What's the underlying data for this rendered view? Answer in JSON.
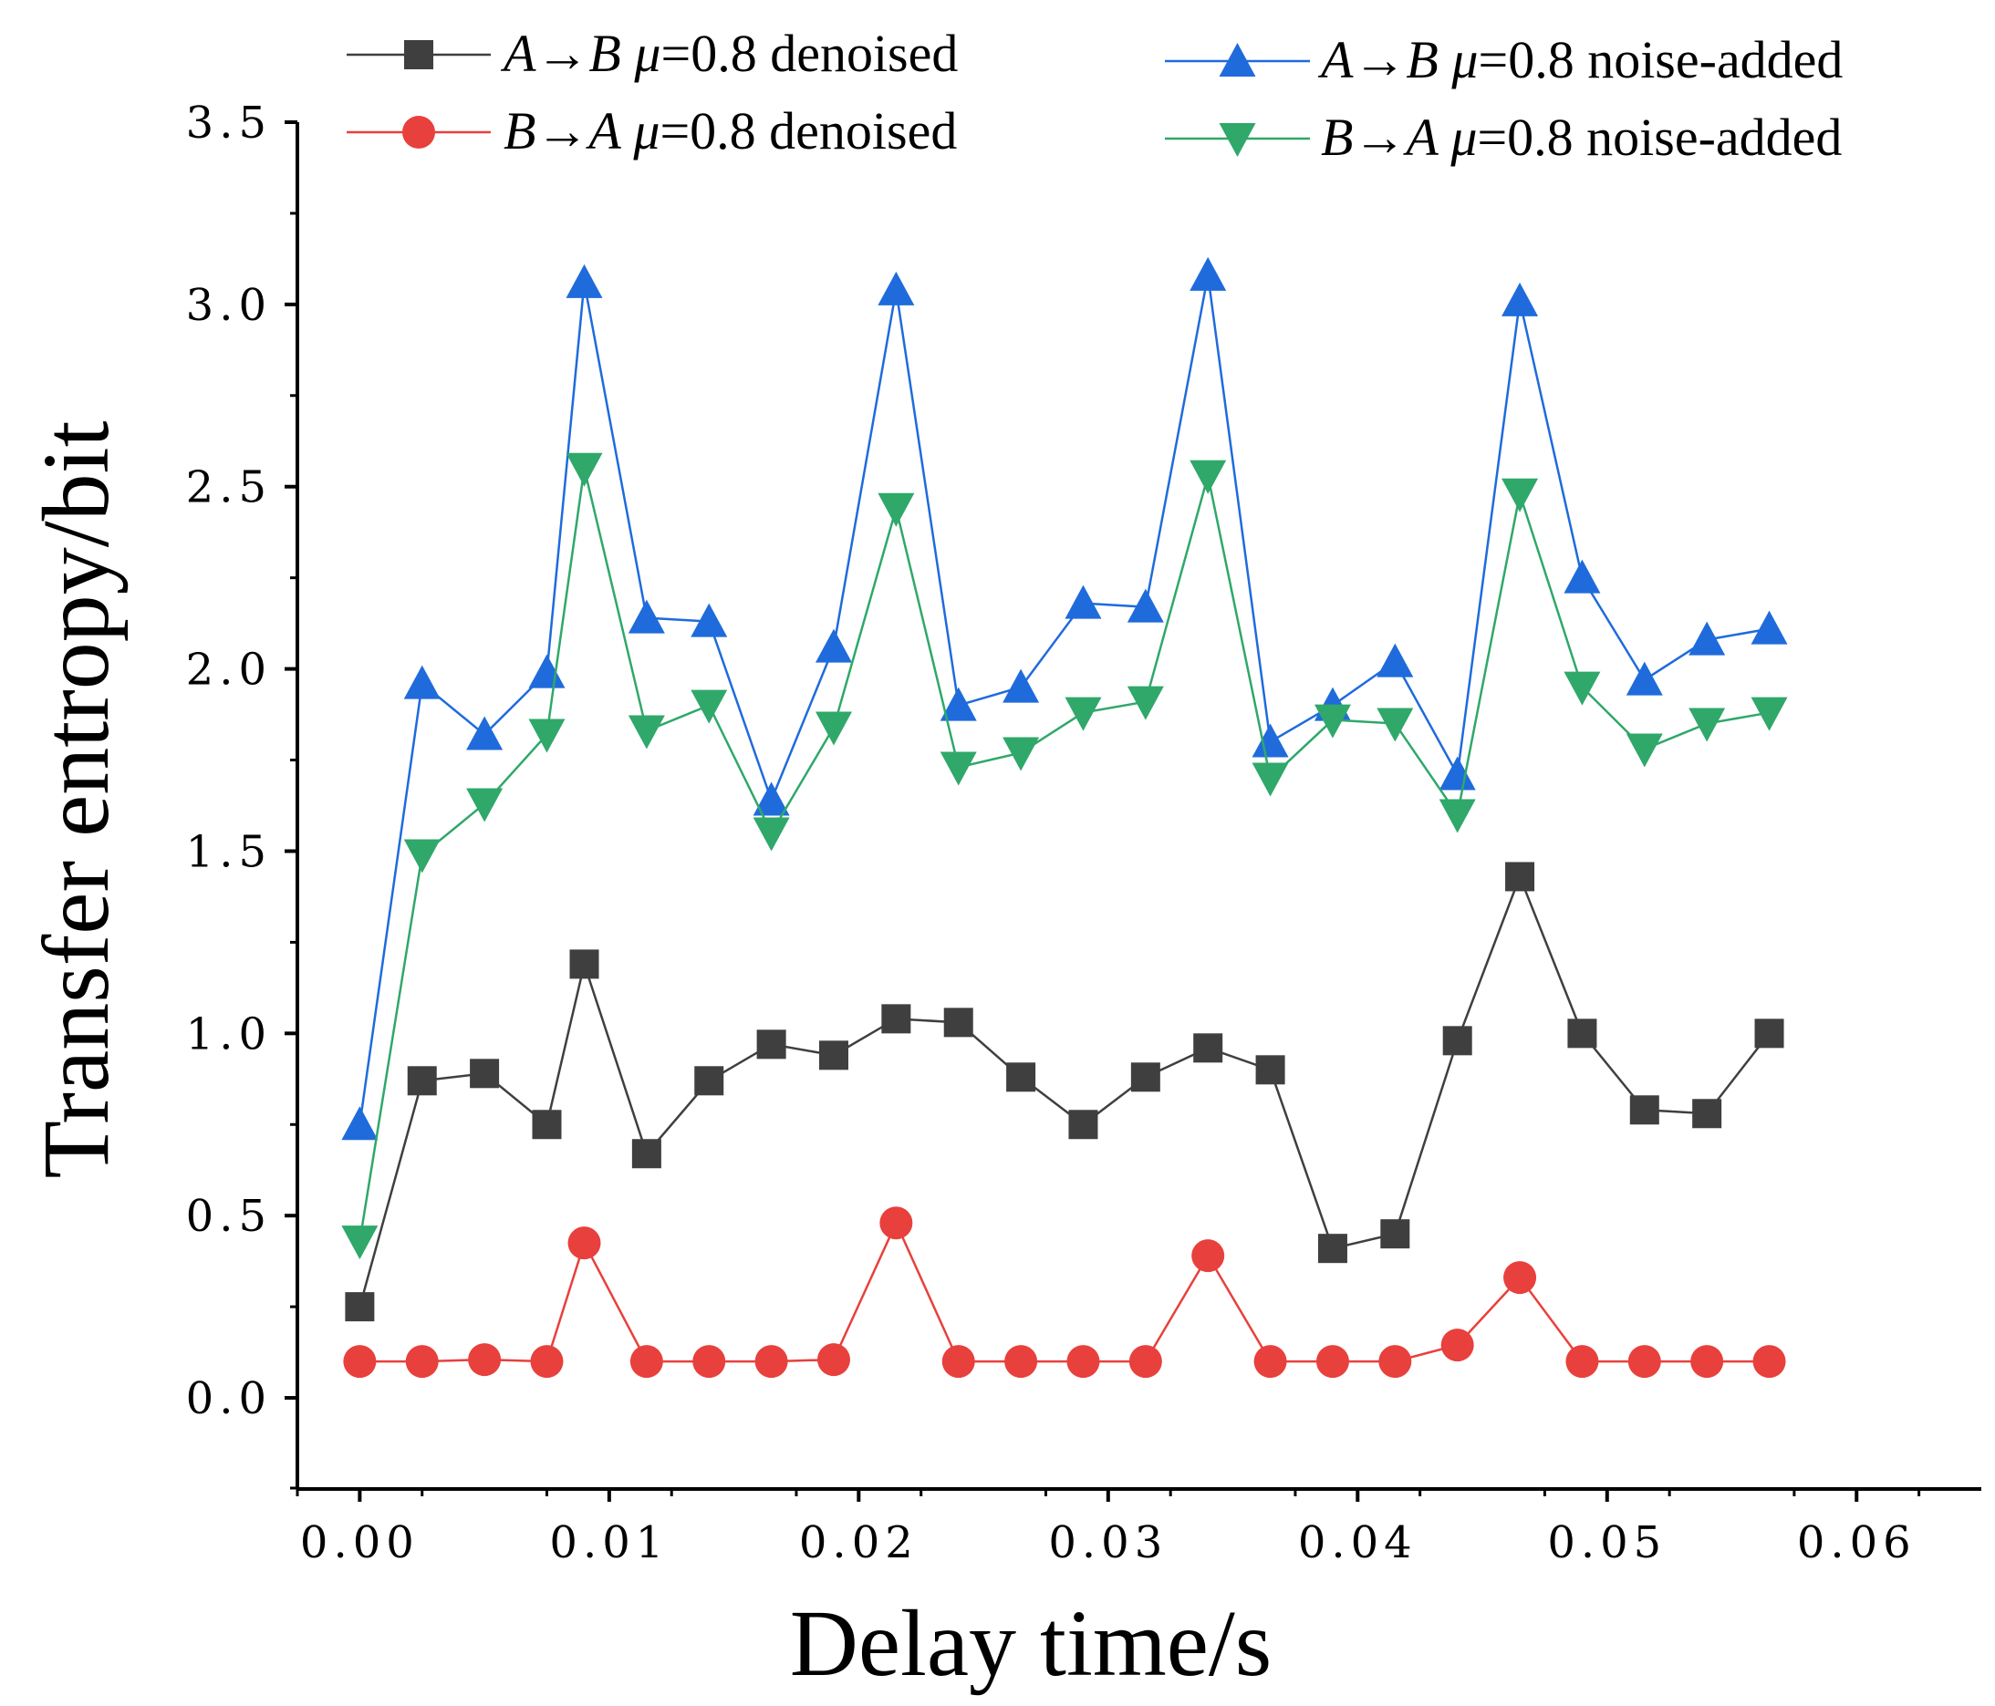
{
  "chart_data": {
    "type": "line",
    "xlabel": "Delay time/s",
    "ylabel": "Transfer entropy/bit",
    "xlim": [
      -0.0025,
      0.065
    ],
    "ylim": [
      -0.25,
      3.5
    ],
    "x_ticks": [
      "0.00",
      "0.01",
      "0.02",
      "0.03",
      "0.04",
      "0.05",
      "0.06"
    ],
    "y_ticks": [
      "0.0",
      "0.5",
      "1.0",
      "1.5",
      "2.0",
      "2.5",
      "3.0",
      "3.5"
    ],
    "x": [
      0,
      0.0025,
      0.005,
      0.0075,
      0.009,
      0.0115,
      0.014,
      0.0165,
      0.019,
      0.0215,
      0.024,
      0.0265,
      0.029,
      0.0315,
      0.034,
      0.0365,
      0.039,
      0.0415,
      0.044,
      0.0465,
      0.049,
      0.0515,
      0.054,
      0.0565
    ],
    "series": [
      {
        "name": "A→B μ=0.8 denoised",
        "legend": {
          "dir": "A→B",
          "mu": "μ",
          "rest": "=0.8 denoised"
        },
        "color": "#3f3f3f",
        "marker": "square",
        "values": [
          0.25,
          0.87,
          0.89,
          0.75,
          1.19,
          0.67,
          0.87,
          0.97,
          0.94,
          1.04,
          1.03,
          0.88,
          0.75,
          0.88,
          0.96,
          0.9,
          0.41,
          0.45,
          0.98,
          1.43,
          1.0,
          0.79,
          0.78,
          1.0
        ]
      },
      {
        "name": "B→A μ=0.8 denoised",
        "legend": {
          "dir": "B→A",
          "mu": "μ",
          "rest": "=0.8 denoised"
        },
        "color": "#e8403c",
        "marker": "circle",
        "values": [
          0.1,
          0.1,
          0.105,
          0.1,
          0.425,
          0.1,
          0.1,
          0.1,
          0.105,
          0.48,
          0.1,
          0.1,
          0.1,
          0.1,
          0.39,
          0.1,
          0.1,
          0.1,
          0.145,
          0.33,
          0.1,
          0.1,
          0.1,
          0.1
        ]
      },
      {
        "name": "A→B μ=0.8 noise-added",
        "legend": {
          "dir": "A→B",
          "mu": "μ",
          "rest": "=0.8 noise-added"
        },
        "color": "#1f6bdc",
        "marker": "triangle-up",
        "values": [
          0.75,
          1.96,
          1.82,
          1.99,
          3.06,
          2.14,
          2.13,
          1.64,
          2.06,
          3.04,
          1.9,
          1.95,
          2.18,
          2.17,
          3.08,
          1.8,
          1.9,
          2.02,
          1.71,
          3.01,
          2.25,
          1.97,
          2.08,
          2.11
        ]
      },
      {
        "name": "B→A μ=0.8 noise-added",
        "legend": {
          "dir": "B→A",
          "mu": "μ",
          "rest": "=0.8 noise-added"
        },
        "color": "#2fa86a",
        "marker": "triangle-down",
        "values": [
          0.43,
          1.49,
          1.63,
          1.82,
          2.55,
          1.83,
          1.9,
          1.55,
          1.84,
          2.44,
          1.73,
          1.77,
          1.88,
          1.91,
          2.53,
          1.7,
          1.86,
          1.85,
          1.6,
          2.48,
          1.95,
          1.78,
          1.85,
          1.88
        ]
      }
    ]
  }
}
